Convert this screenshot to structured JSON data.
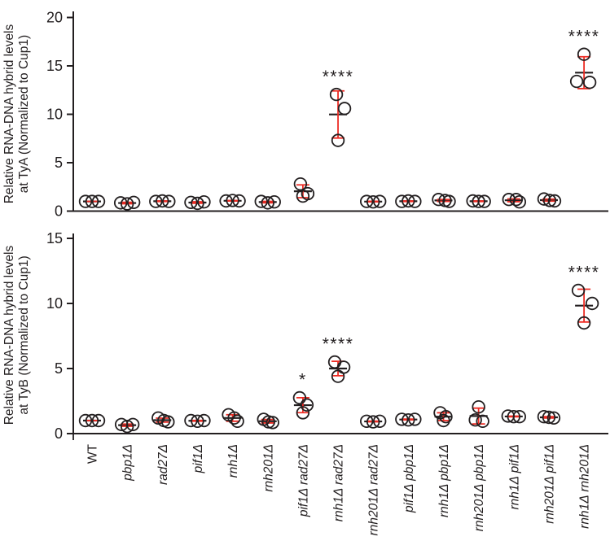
{
  "figure": {
    "background": "#ffffff",
    "ink": "#231f20",
    "accent_red": "#ed2c24",
    "ylabels_top": [
      "Relative RNA-DNA hybrid levels",
      "at TyA (Normalized to Cup1)"
    ],
    "ylabels_bottom": [
      "Relative RNA-DNA hybrid levels",
      "at TyB (Normalized to Cup1)"
    ]
  },
  "chart_data": [
    {
      "type": "scatter",
      "panel": "TyA",
      "ylabel": "Relative RNA-DNA hybrid levels at TyA (Normalized to Cup1)",
      "ylim": [
        0,
        20
      ],
      "yticks": [
        0,
        5,
        10,
        15,
        20
      ],
      "grid": false,
      "marker": "open-circle",
      "error_bars": "mean ± SD",
      "categories": [
        "WT",
        "pbp1Δ",
        "rad27Δ",
        "pif1Δ",
        "rnh1Δ",
        "rnh201Δ",
        "pif1Δ rad27Δ",
        "rnh1Δ rad27Δ",
        "rnh201Δ rad27Δ",
        "pif1Δ pbp1Δ",
        "rnh1Δ pbp1Δ",
        "rnh201Δ pbp1Δ",
        "rnh1Δ pif1Δ",
        "rnh201Δ pif1Δ",
        "rnh1Δ rnh201Δ"
      ],
      "groups": [
        {
          "points": [
            1.0,
            1.0,
            1.0
          ],
          "jitter": [
            -8,
            0,
            8
          ],
          "sig": ""
        },
        {
          "points": [
            0.85,
            0.75,
            0.9
          ],
          "jitter": [
            -8,
            0,
            8
          ],
          "sig": ""
        },
        {
          "points": [
            1.0,
            1.05,
            1.0
          ],
          "jitter": [
            -8,
            0,
            8
          ],
          "sig": ""
        },
        {
          "points": [
            0.9,
            0.8,
            0.95
          ],
          "jitter": [
            -8,
            0,
            8
          ],
          "sig": ""
        },
        {
          "points": [
            1.05,
            1.1,
            1.05
          ],
          "jitter": [
            -8,
            0,
            8
          ],
          "sig": ""
        },
        {
          "points": [
            1.0,
            0.85,
            0.95
          ],
          "jitter": [
            -8,
            0,
            8
          ],
          "sig": ""
        },
        {
          "points": [
            2.8,
            1.8,
            1.55
          ],
          "jitter": [
            -3,
            6,
            0
          ],
          "sig": ""
        },
        {
          "points": [
            12.05,
            10.6,
            7.3
          ],
          "jitter": [
            -2,
            8,
            0
          ],
          "sig": "****"
        },
        {
          "points": [
            1.0,
            0.95,
            1.0
          ],
          "jitter": [
            -8,
            0,
            8
          ],
          "sig": ""
        },
        {
          "points": [
            1.0,
            1.05,
            1.0
          ],
          "jitter": [
            -8,
            0,
            8
          ],
          "sig": ""
        },
        {
          "points": [
            1.2,
            1.1,
            1.0
          ],
          "jitter": [
            -6,
            2,
            7
          ],
          "sig": ""
        },
        {
          "points": [
            1.05,
            1.0,
            1.0
          ],
          "jitter": [
            -7,
            0,
            7
          ],
          "sig": ""
        },
        {
          "points": [
            1.2,
            1.2,
            0.95
          ],
          "jitter": [
            -6,
            3,
            7
          ],
          "sig": ""
        },
        {
          "points": [
            1.25,
            1.1,
            1.05
          ],
          "jitter": [
            -6,
            1,
            7
          ],
          "sig": ""
        },
        {
          "points": [
            16.2,
            13.4,
            13.3
          ],
          "jitter": [
            0,
            -9,
            7
          ],
          "sig": "****"
        }
      ]
    },
    {
      "type": "scatter",
      "panel": "TyB",
      "ylabel": "Relative RNA-DNA hybrid levels at TyB (Normalized to Cup1)",
      "ylim": [
        0,
        15
      ],
      "yticks": [
        0,
        5,
        10,
        15
      ],
      "grid": false,
      "marker": "open-circle",
      "error_bars": "mean ± SD",
      "categories": [
        "WT",
        "pbp1Δ",
        "rad27Δ",
        "pif1Δ",
        "rnh1Δ",
        "rnh201Δ",
        "pif1Δ rad27Δ",
        "rnh1Δ rad27Δ",
        "rnh201Δ rad27Δ",
        "pif1Δ pbp1Δ",
        "rnh1Δ pbp1Δ",
        "rnh201Δ pbp1Δ",
        "rnh1Δ pif1Δ",
        "rnh201Δ pif1Δ",
        "rnh1Δ rnh201Δ"
      ],
      "groups": [
        {
          "points": [
            1.0,
            1.0,
            1.0
          ],
          "jitter": [
            -8,
            0,
            8
          ],
          "sig": ""
        },
        {
          "points": [
            0.7,
            0.55,
            0.7
          ],
          "jitter": [
            -7,
            0,
            7
          ],
          "sig": ""
        },
        {
          "points": [
            1.2,
            1.0,
            0.9
          ],
          "jitter": [
            -5,
            2,
            7
          ],
          "sig": ""
        },
        {
          "points": [
            1.0,
            0.95,
            1.0
          ],
          "jitter": [
            -8,
            0,
            8
          ],
          "sig": ""
        },
        {
          "points": [
            1.45,
            1.2,
            0.95
          ],
          "jitter": [
            -5,
            2,
            6
          ],
          "sig": ""
        },
        {
          "points": [
            1.1,
            0.9,
            0.85
          ],
          "jitter": [
            -5,
            1,
            6
          ],
          "sig": ""
        },
        {
          "points": [
            2.75,
            2.2,
            1.6
          ],
          "jitter": [
            -4,
            5,
            0
          ],
          "sig": "*"
        },
        {
          "points": [
            5.5,
            5.1,
            4.4
          ],
          "jitter": [
            -4,
            7,
            0
          ],
          "sig": "****"
        },
        {
          "points": [
            0.95,
            0.9,
            0.95
          ],
          "jitter": [
            -8,
            0,
            8
          ],
          "sig": ""
        },
        {
          "points": [
            1.1,
            1.05,
            1.1
          ],
          "jitter": [
            -8,
            0,
            8
          ],
          "sig": ""
        },
        {
          "points": [
            1.6,
            1.3,
            1.0
          ],
          "jitter": [
            -4,
            3,
            0
          ],
          "sig": ""
        },
        {
          "points": [
            2.05,
            1.05,
            0.95
          ],
          "jitter": [
            0,
            -4,
            5
          ],
          "sig": ""
        },
        {
          "points": [
            1.35,
            1.3,
            1.3
          ],
          "jitter": [
            -7,
            0,
            7
          ],
          "sig": ""
        },
        {
          "points": [
            1.3,
            1.25,
            1.2
          ],
          "jitter": [
            -6,
            0,
            6
          ],
          "sig": ""
        },
        {
          "points": [
            11.0,
            10.0,
            8.5
          ],
          "jitter": [
            -7,
            10,
            0
          ],
          "sig": "****"
        }
      ]
    }
  ]
}
